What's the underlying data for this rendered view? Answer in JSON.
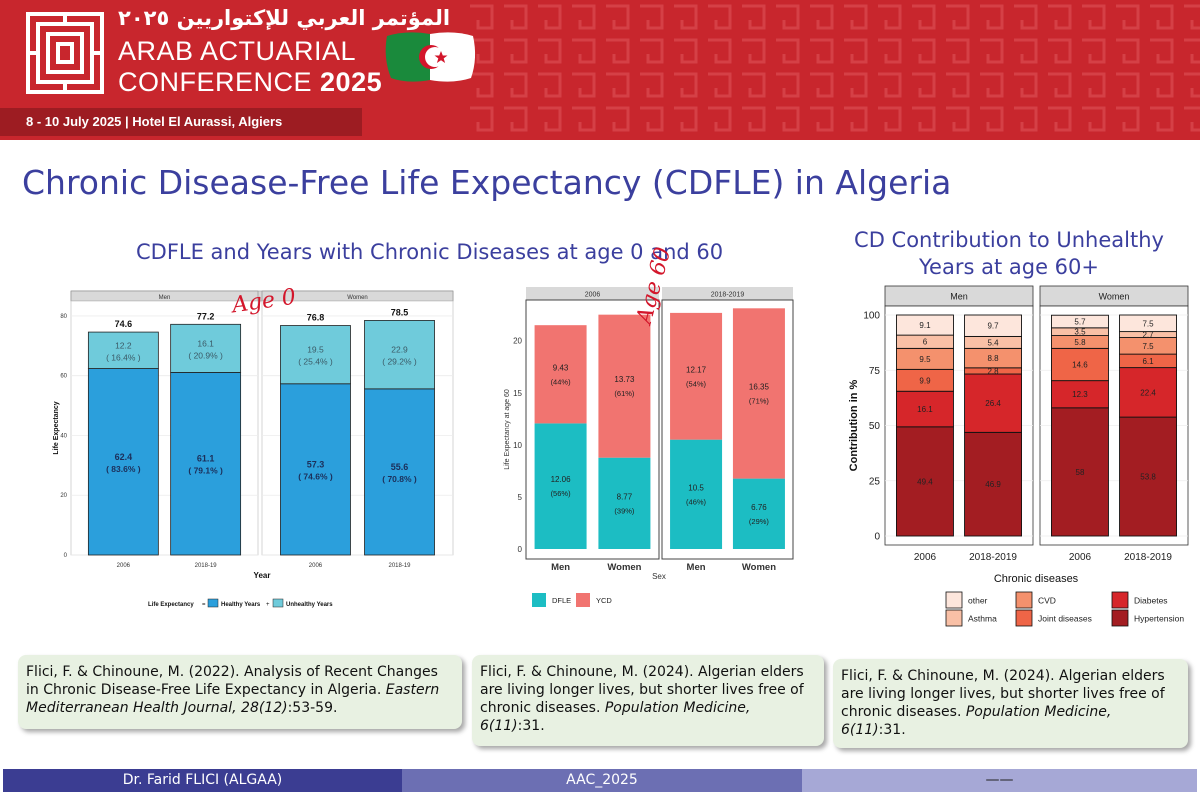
{
  "banner": {
    "arabic_title": "المؤتمر العربي للإكتواريين ٢٠٢٥",
    "line1": "ARAB ACTUARIAL",
    "line2_a": "CONFERENCE",
    "line2_b": "2025",
    "date_venue": "8 - 10 July 2025 | Hotel El Aurassi, Algiers"
  },
  "slide_title": "Chronic Disease-Free Life Expectancy (CDFLE) in Algeria",
  "subtitle_left": "CDFLE and Years with Chronic Diseases at age 0 and 60",
  "subtitle_right": "CD Contribution to Unhealthy Years at age 60+",
  "annotations": {
    "age0": "Age 0",
    "age60": "Age 60"
  },
  "chart_data": [
    {
      "type": "bar",
      "stacked": true,
      "facets": [
        "Men",
        "Women"
      ],
      "categories": [
        "2006",
        "2018-19"
      ],
      "xlabel": "Year",
      "ylabel": "Life Expectancy",
      "ylim": [
        0,
        85
      ],
      "yticks": [
        0,
        20,
        40,
        60,
        80
      ],
      "legend_title": "Life Expectancy",
      "legend_position": "bottom",
      "colors": {
        "healthy": "#2b9fdc",
        "unhealthy": "#6fcbdb"
      },
      "series": [
        {
          "name": "Healthy Years",
          "values": {
            "Men": [
              62.4,
              61.1
            ],
            "Women": [
              57.3,
              55.6
            ]
          },
          "labels": {
            "Men": [
              "( 83.6% )",
              "( 79.1% )"
            ],
            "Women": [
              "( 74.6% )",
              "( 70.8% )"
            ]
          }
        },
        {
          "name": "Unhealthy Years",
          "values": {
            "Men": [
              12.2,
              16.1
            ],
            "Women": [
              19.5,
              22.9
            ]
          },
          "labels": {
            "Men": [
              "( 16.4% )",
              "( 20.9% )"
            ],
            "Women": [
              "( 25.4% )",
              "( 29.2% )"
            ]
          }
        }
      ],
      "totals": {
        "Men": [
          74.6,
          77.2
        ],
        "Women": [
          76.8,
          78.5
        ]
      }
    },
    {
      "type": "bar",
      "stacked": true,
      "facets": [
        "2006",
        "2018-2019"
      ],
      "categories": [
        "Men",
        "Women"
      ],
      "xlabel": "Sex",
      "ylabel": "Life Expectancy at age 60",
      "ylim": [
        0,
        23.5
      ],
      "yticks": [
        0,
        5,
        10,
        15,
        20
      ],
      "legend_position": "bottom",
      "colors": {
        "DFLE": "#1cbdc3",
        "YCD": "#f17470"
      },
      "series": [
        {
          "name": "DFLE",
          "values": {
            "2006": [
              12.06,
              8.77
            ],
            "2018-2019": [
              10.5,
              6.76
            ]
          },
          "labels": {
            "2006": [
              "(56%)",
              "(39%)"
            ],
            "2018-2019": [
              "(46%)",
              "(29%)"
            ]
          }
        },
        {
          "name": "YCD",
          "values": {
            "2006": [
              9.43,
              13.73
            ],
            "2018-2019": [
              12.17,
              16.35
            ]
          },
          "labels": {
            "2006": [
              "(44%)",
              "(61%)"
            ],
            "2018-2019": [
              "(54%)",
              "(71%)"
            ]
          }
        }
      ]
    },
    {
      "type": "bar",
      "stacked": true,
      "facets": [
        "Men",
        "Women"
      ],
      "categories": [
        "2006",
        "2018-2019"
      ],
      "xlabel": "Chronic diseases",
      "ylabel": "Contribution in %",
      "ylim": [
        0,
        100
      ],
      "yticks": [
        0,
        25,
        50,
        75,
        100
      ],
      "legend_position": "bottom",
      "series": [
        {
          "name": "Hypertension",
          "color": "#a31d22",
          "values": {
            "Men": [
              49.4,
              46.9
            ],
            "Women": [
              58,
              53.8
            ]
          }
        },
        {
          "name": "Diabetes",
          "color": "#d6262a",
          "values": {
            "Men": [
              16.1,
              26.4
            ],
            "Women": [
              12.3,
              22.4
            ]
          }
        },
        {
          "name": "Joint diseases",
          "color": "#ef6547",
          "values": {
            "Men": [
              9.9,
              2.8
            ],
            "Women": [
              14.6,
              6.1
            ]
          }
        },
        {
          "name": "CVD",
          "color": "#f4916d",
          "values": {
            "Men": [
              9.5,
              8.8
            ],
            "Women": [
              5.8,
              7.5
            ]
          }
        },
        {
          "name": "Asthma",
          "color": "#f9c0a6",
          "values": {
            "Men": [
              6,
              5.4
            ],
            "Women": [
              3.5,
              2.7
            ]
          }
        },
        {
          "name": "other",
          "color": "#fde6dc",
          "values": {
            "Men": [
              9.1,
              9.7
            ],
            "Women": [
              5.7,
              7.5
            ]
          }
        }
      ]
    }
  ],
  "references": [
    {
      "authors": "Flici, F. & Chinoune, M. (2022). Analysis of Recent Changes in Chronic Disease-Free Life Expectancy in Algeria. ",
      "journal": "Eastern Mediterranean Health Journal, 28(12)",
      "pages": ":53-59."
    },
    {
      "authors": "Flici, F. & Chinoune, M. (2024). Algerian elders are living longer lives, but shorter lives free of chronic diseases. ",
      "journal": "Population Medicine, 6(11)",
      "pages": ":31."
    },
    {
      "authors": "Flici, F. & Chinoune, M. (2024). Algerian elders are living longer lives, but shorter lives free of chronic diseases. ",
      "journal": "Population Medicine, 6(11)",
      "pages": ":31."
    }
  ],
  "footer": {
    "author": "Dr. Farid FLICI  (ALGAA)",
    "event": "AAC_2025",
    "page": "——"
  }
}
